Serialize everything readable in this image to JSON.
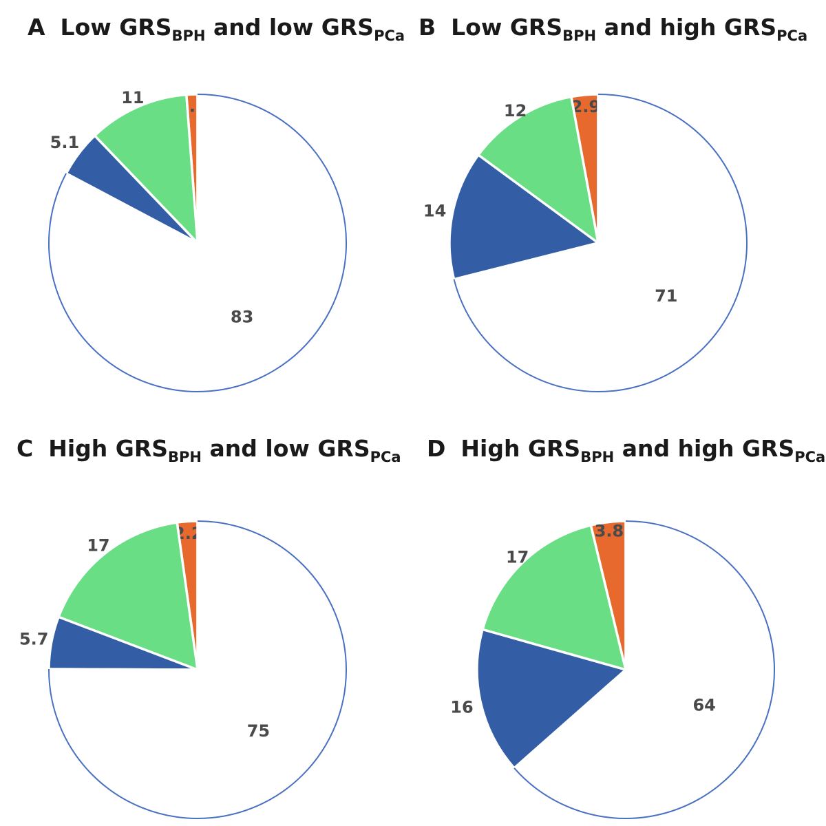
{
  "colors": {
    "orange": "#e8692e",
    "green": "#69de84",
    "blue": "#335ea6",
    "white": "#ffffff",
    "outline": "#4a70c2"
  },
  "chart_data": [
    {
      "type": "pie",
      "panel": "A",
      "title": {
        "prefix": "Low GRS",
        "sub1": "BPH",
        "middle": " and low GRS",
        "sub2": "PCa"
      },
      "slices": [
        {
          "label": "1.2",
          "value": 1.2,
          "color": "orange"
        },
        {
          "label": "11",
          "value": 11,
          "color": "green"
        },
        {
          "label": "5.1",
          "value": 5.1,
          "color": "blue"
        },
        {
          "label": "83",
          "value": 83,
          "color": "white"
        }
      ]
    },
    {
      "type": "pie",
      "panel": "B",
      "title": {
        "prefix": "Low GRS",
        "sub1": "BPH",
        "middle": " and high GRS",
        "sub2": "PCa"
      },
      "slices": [
        {
          "label": "2.9",
          "value": 2.9,
          "color": "orange"
        },
        {
          "label": "12",
          "value": 12,
          "color": "green"
        },
        {
          "label": "14",
          "value": 14,
          "color": "blue"
        },
        {
          "label": "71",
          "value": 71,
          "color": "white"
        }
      ]
    },
    {
      "type": "pie",
      "panel": "C",
      "title": {
        "prefix": "High GRS",
        "sub1": "BPH",
        "middle": " and low GRS",
        "sub2": "PCa"
      },
      "slices": [
        {
          "label": "2.2",
          "value": 2.2,
          "color": "orange"
        },
        {
          "label": "17",
          "value": 17,
          "color": "green"
        },
        {
          "label": "5.7",
          "value": 5.7,
          "color": "blue"
        },
        {
          "label": "75",
          "value": 75,
          "color": "white"
        }
      ]
    },
    {
      "type": "pie",
      "panel": "D",
      "title": {
        "prefix": "High GRS",
        "sub1": "BPH",
        "middle": " and high GRS",
        "sub2": "PCa"
      },
      "slices": [
        {
          "label": "3.8",
          "value": 3.8,
          "color": "orange"
        },
        {
          "label": "17",
          "value": 17,
          "color": "green"
        },
        {
          "label": "16",
          "value": 16,
          "color": "blue"
        },
        {
          "label": "64",
          "value": 64,
          "color": "white"
        }
      ]
    }
  ]
}
